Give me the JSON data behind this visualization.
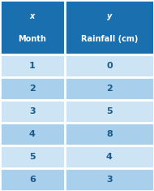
{
  "col1_header_top": "x",
  "col2_header_top": "y",
  "col1_header_bot": "Month",
  "col2_header_bot": "Rainfall (cm)",
  "rows": [
    [
      1,
      0
    ],
    [
      2,
      2
    ],
    [
      3,
      5
    ],
    [
      4,
      8
    ],
    [
      5,
      4
    ],
    [
      6,
      3
    ]
  ],
  "header_bg": "#1a6faf",
  "row_color_light": "#cde4f5",
  "row_color_dark": "#a8d0ec",
  "header_text_color": "#ffffff",
  "cell_text_color": "#1a5a8a",
  "border_color": "#ffffff",
  "col_split": 0.42,
  "header_fontsize": 7.0,
  "cell_fontsize": 8.0
}
